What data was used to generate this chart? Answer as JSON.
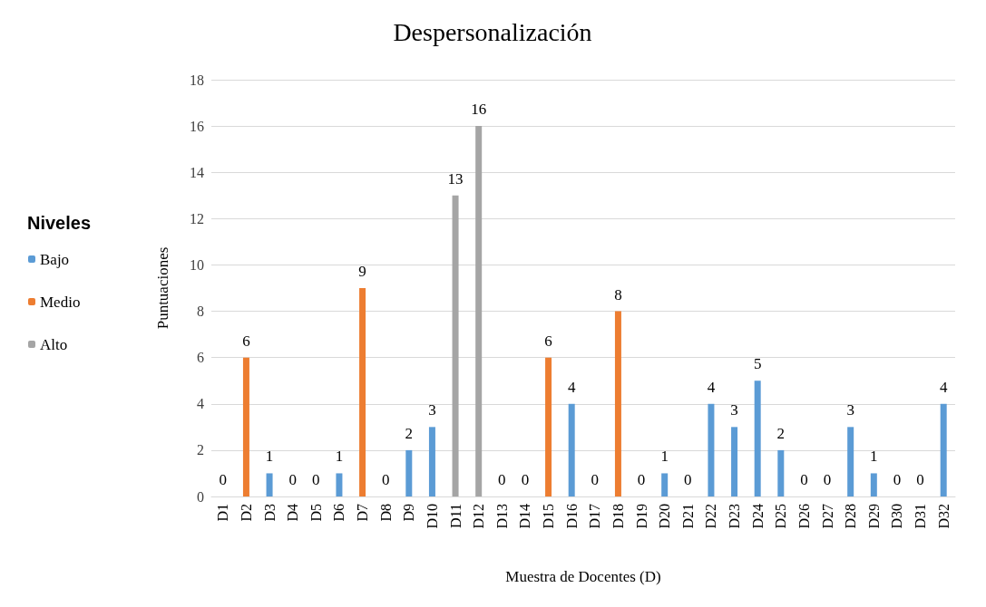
{
  "chart_data": {
    "type": "bar",
    "title": "Despersonalización",
    "xlabel": "Muestra de Docentes (D)",
    "ylabel": "Puntuaciones",
    "legend_title": "Niveles",
    "categories": [
      "D1",
      "D2",
      "D3",
      "D4",
      "D5",
      "D6",
      "D7",
      "D8",
      "D9",
      "D10",
      "D11",
      "D12",
      "D13",
      "D14",
      "D15",
      "D16",
      "D17",
      "D18",
      "D19",
      "D20",
      "D21",
      "D22",
      "D23",
      "D24",
      "D25",
      "D26",
      "D27",
      "D28",
      "D29",
      "D30",
      "D31",
      "D32"
    ],
    "series": [
      {
        "name": "Bajo",
        "color": "#5b9bd5",
        "values": [
          0,
          null,
          1,
          0,
          0,
          1,
          null,
          0,
          2,
          3,
          null,
          null,
          0,
          0,
          null,
          4,
          0,
          null,
          0,
          1,
          0,
          4,
          3,
          5,
          2,
          0,
          0,
          3,
          1,
          0,
          0,
          4
        ]
      },
      {
        "name": "Medio",
        "color": "#ed7d31",
        "values": [
          null,
          6,
          null,
          null,
          null,
          null,
          9,
          null,
          null,
          null,
          null,
          null,
          null,
          null,
          6,
          null,
          null,
          8,
          null,
          null,
          null,
          null,
          null,
          null,
          null,
          null,
          null,
          null,
          null,
          null,
          null,
          null
        ]
      },
      {
        "name": "Alto",
        "color": "#a5a5a5",
        "values": [
          null,
          null,
          null,
          null,
          null,
          null,
          null,
          null,
          null,
          null,
          13,
          16,
          null,
          null,
          null,
          null,
          null,
          null,
          null,
          null,
          null,
          null,
          null,
          null,
          null,
          null,
          null,
          null,
          null,
          null,
          null,
          null
        ]
      }
    ],
    "stacked": true,
    "ylim": [
      0,
      18
    ],
    "yticks": [
      0,
      2,
      4,
      6,
      8,
      10,
      12,
      14,
      16,
      18
    ],
    "grid": "y",
    "legend": "left",
    "data_labels": true
  }
}
